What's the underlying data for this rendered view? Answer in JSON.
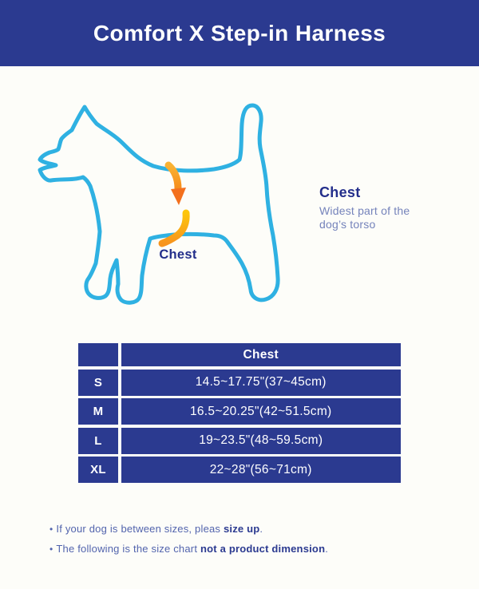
{
  "header": {
    "title": "Comfort X Step-in Harness",
    "bg_color": "#2b3a90",
    "text_color": "#ffffff"
  },
  "illustration": {
    "dog_outline_icon": "dog-side-outline",
    "outline_color": "#2fb1e2",
    "arrow_icon": "chest-measure-arrow",
    "arrow_color_start": "#fcc40d",
    "arrow_color_end": "#f3701e",
    "chest_label": "Chest"
  },
  "info": {
    "heading": "Chest",
    "description": "Widest part of the dog’s torso"
  },
  "size_table": {
    "corner_label": "",
    "column_header": "Chest",
    "rows": [
      {
        "size": "S",
        "chest": "14.5~17.75\"(37~45cm)"
      },
      {
        "size": "M",
        "chest": "16.5~20.25\"(42~51.5cm)"
      },
      {
        "size": "L",
        "chest": "19~23.5\"(48~59.5cm)"
      },
      {
        "size": "XL",
        "chest": "22~28\"(56~71cm)"
      }
    ]
  },
  "notes": [
    {
      "segments": [
        {
          "text": "If your dog is between sizes, pleas ",
          "bold": false
        },
        {
          "text": "size up",
          "bold": true
        },
        {
          "text": ".",
          "bold": false
        }
      ]
    },
    {
      "segments": [
        {
          "text": "The following is the size chart ",
          "bold": false
        },
        {
          "text": "not a product dimension",
          "bold": true
        },
        {
          "text": ".",
          "bold": false
        }
      ]
    }
  ]
}
